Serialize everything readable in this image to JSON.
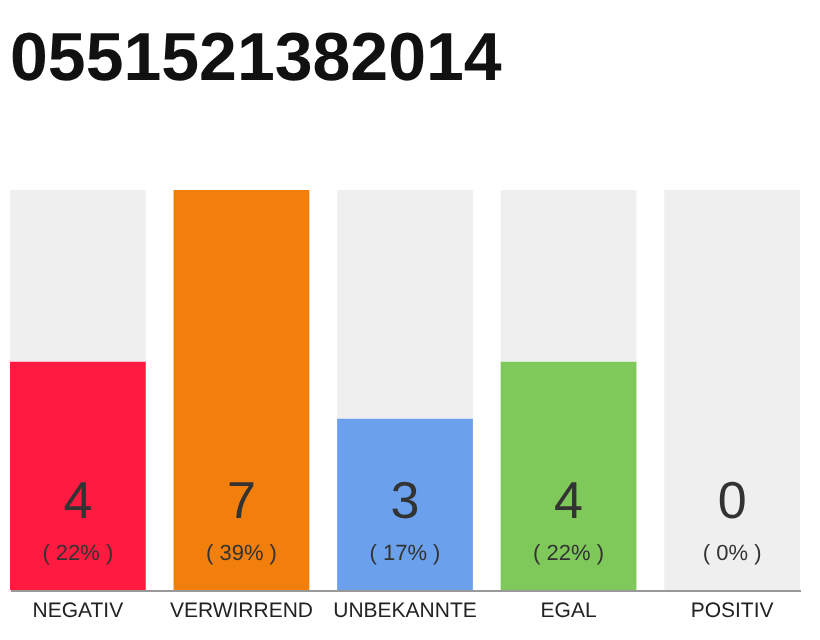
{
  "chart_data": {
    "type": "bar",
    "title": "0551521382014",
    "categories": [
      "NEGATIV",
      "VERWIRREND",
      "UNBEKANNTE",
      "EGAL",
      "POSITIV"
    ],
    "stacked": true,
    "series": [
      {
        "colors": [
          "#ff1a40",
          "#f27f0c",
          "#6aa0ec",
          "#7ec95a",
          "#d9d9d9"
        ],
        "values": [
          4,
          7,
          3,
          4,
          0
        ],
        "value_labels": [
          "4",
          "7",
          "3",
          "4",
          null
        ]
      },
      {
        "color": "#efefef",
        "values": [
          3,
          0,
          4,
          3,
          7
        ]
      }
    ],
    "annotations": [
      "( 22% )",
      "( 39% )",
      "( 17% )",
      "( 22% )",
      "( 0% )",
      "0"
    ],
    "grid": false,
    "legend": false
  }
}
